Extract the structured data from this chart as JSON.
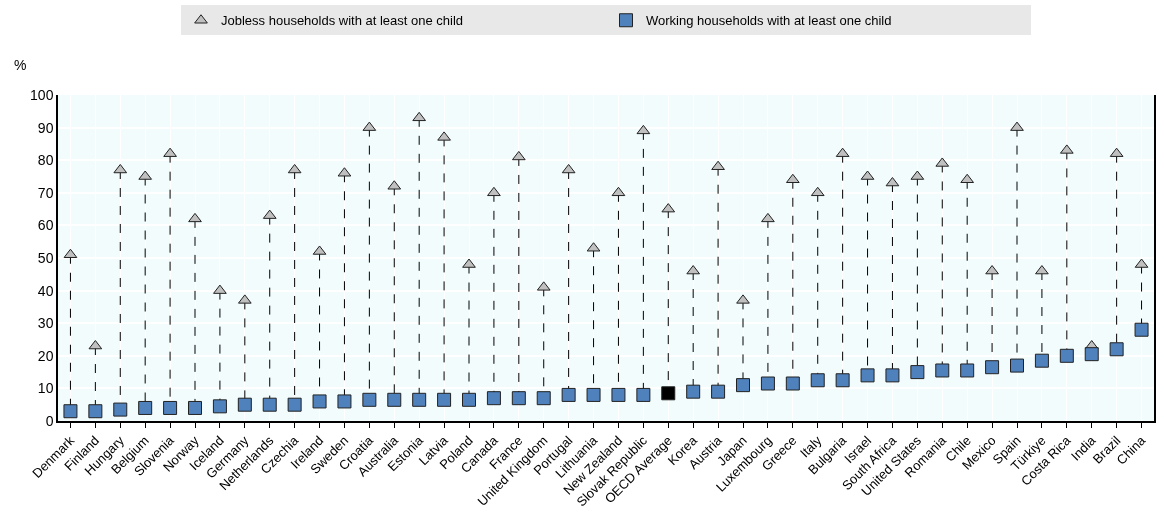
{
  "chart_data": {
    "type": "scatter",
    "ylabel": "%",
    "legend": "top",
    "grid": true,
    "line_style": "dashed",
    "ylim": [
      0,
      100
    ],
    "yticks": [
      0,
      10,
      20,
      30,
      40,
      50,
      60,
      70,
      80,
      90,
      100
    ],
    "categories": [
      "Denmark",
      "Finland",
      "Hungary",
      "Belgium",
      "Slovenia",
      "Norway",
      "Iceland",
      "Germany",
      "Netherlands",
      "Czechia",
      "Ireland",
      "Sweden",
      "Croatia",
      "Australia",
      "Estonia",
      "Latvia",
      "Poland",
      "Canada",
      "France",
      "United Kingdom",
      "Portugal",
      "Lithuania",
      "New Zealand",
      "Slovak Republic",
      "OECD Average",
      "Korea",
      "Austria",
      "Japan",
      "Luxembourg",
      "Greece",
      "Italy",
      "Bulgaria",
      "Israel",
      "South Africa",
      "United States",
      "Romania",
      "Chile",
      "Mexico",
      "Spain",
      "Türkiye",
      "Costa Rica",
      "India",
      "Brazil",
      "China"
    ],
    "series": [
      {
        "name": "Jobless households with at least one child",
        "marker": "triangle",
        "color": "#c0c0c0",
        "values": [
          51,
          23,
          77,
          75,
          82,
          62,
          40,
          37,
          63,
          77,
          52,
          76,
          90,
          72,
          93,
          87,
          48,
          70,
          81,
          41,
          77,
          53,
          70,
          89,
          65,
          46,
          78,
          37,
          62,
          74,
          70,
          82,
          75,
          73,
          75,
          79,
          74,
          46,
          90,
          46,
          83,
          23,
          82,
          48
        ]
      },
      {
        "name": "Working households with at least one child",
        "marker": "square",
        "color": "#4f81bd",
        "colors": [
          "#4f81bd",
          "#4f81bd",
          "#4f81bd",
          "#4f81bd",
          "#4f81bd",
          "#4f81bd",
          "#4f81bd",
          "#4f81bd",
          "#4f81bd",
          "#4f81bd",
          "#4f81bd",
          "#4f81bd",
          "#4f81bd",
          "#4f81bd",
          "#4f81bd",
          "#4f81bd",
          "#4f81bd",
          "#4f81bd",
          "#4f81bd",
          "#4f81bd",
          "#4f81bd",
          "#4f81bd",
          "#4f81bd",
          "#4f81bd",
          "#000000",
          "#4f81bd",
          "#4f81bd",
          "#4f81bd",
          "#4f81bd",
          "#4f81bd",
          "#4f81bd",
          "#4f81bd",
          "#4f81bd",
          "#4f81bd",
          "#4f81bd",
          "#4f81bd",
          "#4f81bd",
          "#4f81bd",
          "#4f81bd",
          "#4f81bd",
          "#4f81bd",
          "#4f81bd",
          "#4f81bd",
          "#4f81bd"
        ],
        "values": [
          3,
          3,
          3.5,
          4,
          4,
          4,
          4.5,
          5,
          5,
          5,
          6,
          6,
          6.5,
          6.5,
          6.5,
          6.5,
          6.5,
          7,
          7,
          7,
          8,
          8,
          8,
          8,
          8.5,
          9,
          9,
          11,
          11.5,
          11.5,
          12.5,
          12.5,
          14,
          14,
          15,
          15.5,
          15.5,
          16.5,
          17,
          18.5,
          20,
          20.5,
          22,
          28
        ]
      }
    ]
  }
}
